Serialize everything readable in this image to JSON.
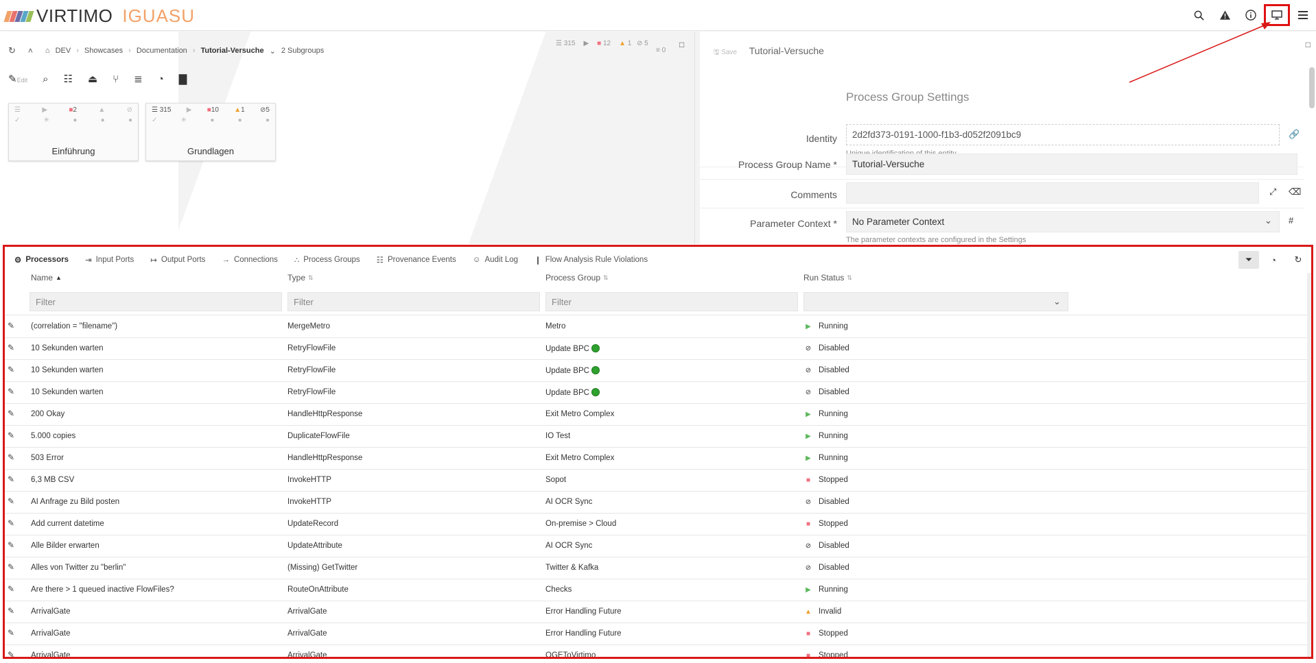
{
  "app": {
    "brand": "VIRTIMO",
    "product": "IGUASU",
    "logo_colors": [
      "#f2a268",
      "#e8746c",
      "#6d6fa9",
      "#5aa6c7",
      "#9bbf5a"
    ]
  },
  "topbar": {
    "icons": [
      "search-icon",
      "warning-icon",
      "info-icon",
      "monitor-icon",
      "menu-icon"
    ]
  },
  "canvas": {
    "breadcrumb": [
      "DEV",
      "Showcases",
      "Documentation",
      "Tutorial-Versuche"
    ],
    "subgroups": "2 Subgroups",
    "stats": {
      "queued": "315",
      "stopped": "12",
      "invalid": "1",
      "disabled": "5",
      "queue": "0"
    },
    "edit_label": "Edit",
    "cards": [
      {
        "name": "Einführung",
        "stopped": "2"
      },
      {
        "name": "Grundlagen",
        "queued": "315",
        "stopped": "10",
        "invalid": "1",
        "disabled": "5"
      }
    ]
  },
  "settings": {
    "save_label": "Save",
    "title": "Tutorial-Versuche",
    "heading": "Process Group Settings",
    "identity_label": "Identity",
    "identity_value": "2d2fd373-0191-1000-f1b3-d052f2091bc9",
    "identity_hint": "Unique identification of this entity",
    "name_label": "Process Group Name *",
    "name_value": "Tutorial-Versuche",
    "comments_label": "Comments",
    "param_label": "Parameter Context *",
    "param_value": "No Parameter Context",
    "param_hint": "The parameter contexts are configured in the Settings"
  },
  "bottom": {
    "tabs": [
      "Processors",
      "Input Ports",
      "Output Ports",
      "Connections",
      "Process Groups",
      "Provenance Events",
      "Audit Log",
      "Flow Analysis Rule Violations"
    ],
    "columns": [
      "Name",
      "Type",
      "Process Group",
      "Run Status"
    ],
    "filter_placeholder": "Filter",
    "rows": [
      {
        "name": "(correlation = \"filename\")",
        "type": "MergeMetro",
        "group": "Metro",
        "status": "Running",
        "s": "run",
        "dot": false
      },
      {
        "name": "10 Sekunden warten",
        "type": "RetryFlowFile",
        "group": "Update BPC",
        "status": "Disabled",
        "s": "dis",
        "dot": true
      },
      {
        "name": "10 Sekunden warten",
        "type": "RetryFlowFile",
        "group": "Update BPC",
        "status": "Disabled",
        "s": "dis",
        "dot": true
      },
      {
        "name": "10 Sekunden warten",
        "type": "RetryFlowFile",
        "group": "Update BPC",
        "status": "Disabled",
        "s": "dis",
        "dot": true
      },
      {
        "name": "200 Okay",
        "type": "HandleHttpResponse",
        "group": "Exit Metro Complex",
        "status": "Running",
        "s": "run",
        "dot": false
      },
      {
        "name": "5.000 copies",
        "type": "DuplicateFlowFile",
        "group": "IO Test",
        "status": "Running",
        "s": "run",
        "dot": false
      },
      {
        "name": "503 Error",
        "type": "HandleHttpResponse",
        "group": "Exit Metro Complex",
        "status": "Running",
        "s": "run",
        "dot": false
      },
      {
        "name": "6,3 MB CSV",
        "type": "InvokeHTTP",
        "group": "Sopot",
        "status": "Stopped",
        "s": "stop",
        "dot": false
      },
      {
        "name": "AI Anfrage zu Bild posten",
        "type": "InvokeHTTP",
        "group": "AI OCR Sync",
        "status": "Disabled",
        "s": "dis",
        "dot": false
      },
      {
        "name": "Add current datetime",
        "type": "UpdateRecord",
        "group": "On-premise > Cloud",
        "status": "Stopped",
        "s": "stop",
        "dot": false
      },
      {
        "name": "Alle Bilder erwarten",
        "type": "UpdateAttribute",
        "group": "AI OCR Sync",
        "status": "Disabled",
        "s": "dis",
        "dot": false
      },
      {
        "name": "Alles von Twitter zu \"berlin\"",
        "type": "(Missing) GetTwitter",
        "group": "Twitter & Kafka",
        "status": "Disabled",
        "s": "dis",
        "dot": false
      },
      {
        "name": "Are there > 1 queued inactive FlowFiles?",
        "type": "RouteOnAttribute",
        "group": "Checks",
        "status": "Running",
        "s": "run",
        "dot": false
      },
      {
        "name": "ArrivalGate",
        "type": "ArrivalGate",
        "group": "Error Handling Future",
        "status": "Invalid",
        "s": "inv",
        "dot": false
      },
      {
        "name": "ArrivalGate",
        "type": "ArrivalGate",
        "group": "Error Handling Future",
        "status": "Stopped",
        "s": "stop",
        "dot": false
      },
      {
        "name": "ArrivalGate",
        "type": "ArrivalGate",
        "group": "OGEToVirtimo",
        "status": "Stopped",
        "s": "stop",
        "dot": false
      }
    ]
  }
}
